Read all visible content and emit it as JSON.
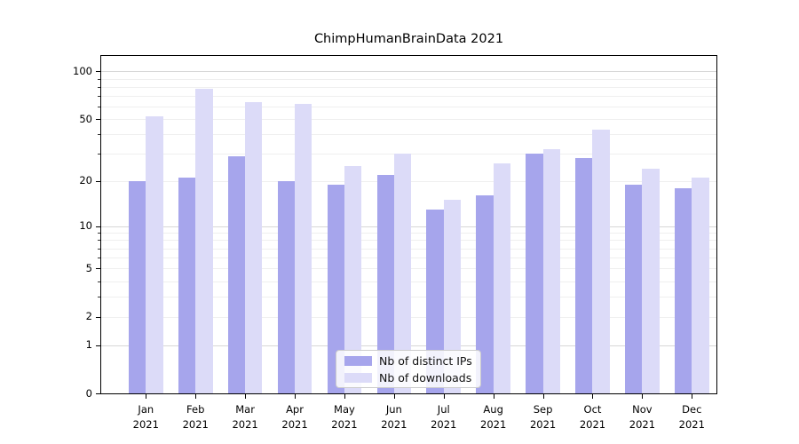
{
  "title": "ChimpHumanBrainData 2021",
  "colors": {
    "distinct_ips": "#a6a5ec",
    "downloads": "#dcdbf8",
    "grid_major": "#d7d7d7",
    "grid_minor": "#efefef",
    "axis": "#000000",
    "legend_border": "#cccccc"
  },
  "legend": {
    "items": [
      {
        "label": "Nb of distinct IPs",
        "color_key": "distinct_ips"
      },
      {
        "label": "Nb of downloads",
        "color_key": "downloads"
      }
    ]
  },
  "chart_data": {
    "type": "bar",
    "title": "ChimpHumanBrainData 2021",
    "categories": [
      "Jan",
      "Feb",
      "Mar",
      "Apr",
      "May",
      "Jun",
      "Jul",
      "Aug",
      "Sep",
      "Oct",
      "Nov",
      "Dec"
    ],
    "x_second_line": "2021",
    "series": [
      {
        "name": "Nb of distinct IPs",
        "color": "#a6a5ec",
        "values": [
          20,
          21,
          29,
          20,
          19,
          22,
          13,
          16,
          30,
          28,
          19,
          18
        ]
      },
      {
        "name": "Nb of downloads",
        "color": "#dcdbf8",
        "values": [
          52,
          78,
          64,
          62,
          25,
          30,
          15,
          26,
          32,
          43,
          24,
          21
        ]
      }
    ],
    "yscale": "log1p",
    "ylim": [
      0,
      125
    ],
    "y_tick_values": [
      0,
      1,
      2,
      5,
      10,
      20,
      50,
      100
    ],
    "y_tick_labels": [
      "0",
      "1",
      "2",
      "5",
      "10",
      "20",
      "50",
      "100"
    ],
    "y_major_gridlines": [
      1,
      10,
      100
    ],
    "y_minor_gridlines": [
      2,
      3,
      4,
      5,
      6,
      7,
      8,
      9,
      20,
      30,
      40,
      50,
      60,
      70,
      80,
      90
    ],
    "grid": "horizontal",
    "legend_position": "lower-center",
    "xlabel": "",
    "ylabel": ""
  }
}
